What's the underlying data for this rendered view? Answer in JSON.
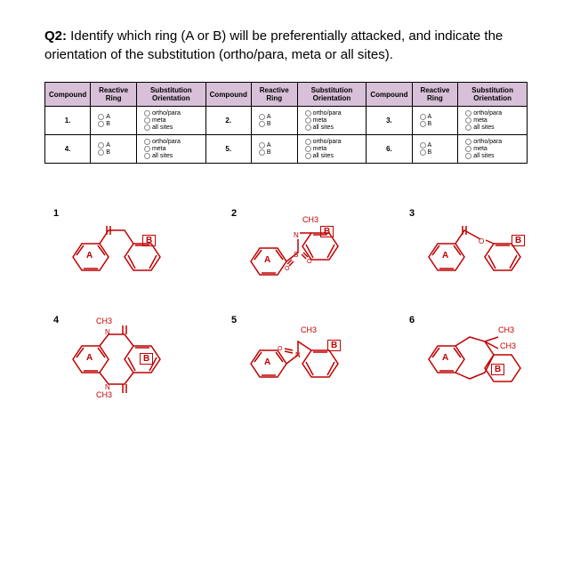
{
  "question": {
    "prefix": "Q2:",
    "text": " Identify which ring (A or B) will be preferentially attacked, and indicate the orientation of the substitution (ortho/para, meta or all sites)."
  },
  "table": {
    "headers": {
      "compound": "Compound",
      "ring": "Reactive Ring",
      "orient": "Substitution Orientation"
    },
    "ringOptions": {
      "a": "A",
      "b": "B"
    },
    "orientOptions": {
      "op": "ortho/para",
      "m": "meta",
      "all": "all sites"
    },
    "rows": [
      "1.",
      "2.",
      "3.",
      "4.",
      "5.",
      "6."
    ],
    "header_bg": "#d8c0d8",
    "border_color": "#000000"
  },
  "structures": {
    "labels": {
      "A": "A",
      "B": "B",
      "CH3": "CH3"
    },
    "numbers": [
      "1",
      "2",
      "3",
      "4",
      "5",
      "6"
    ],
    "stroke_color": "#c00000"
  },
  "colors": {
    "text": "#000000",
    "structure": "#c00000",
    "background": "#ffffff"
  }
}
